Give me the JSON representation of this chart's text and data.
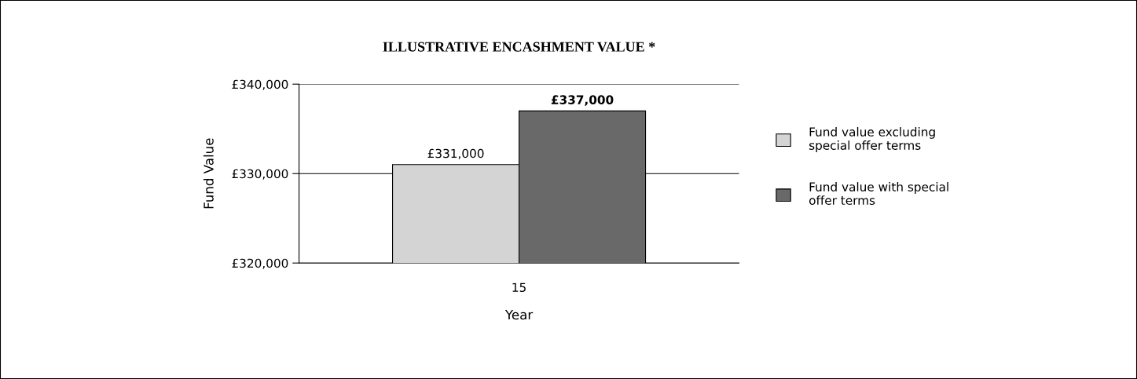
{
  "chart_data": {
    "type": "bar",
    "title": "ILLUSTRATIVE ENCASHMENT VALUE *",
    "xlabel": "Year",
    "ylabel": "Fund Value",
    "categories": [
      "15"
    ],
    "series": [
      {
        "name": "Fund value excluding special offer terms",
        "color": "#d4d4d4",
        "values": [
          331000
        ],
        "value_labels": [
          "£331,000"
        ]
      },
      {
        "name": "Fund value with special offer terms",
        "color": "#696969",
        "values": [
          337000
        ],
        "value_labels": [
          "£337,000"
        ]
      }
    ],
    "ylim": [
      320000,
      340000
    ],
    "yticks": [
      {
        "value": 320000,
        "label": "£320,000"
      },
      {
        "value": 330000,
        "label": "£330,000"
      },
      {
        "value": 340000,
        "label": "£340,000"
      }
    ],
    "grid": "y",
    "legend": "right"
  }
}
